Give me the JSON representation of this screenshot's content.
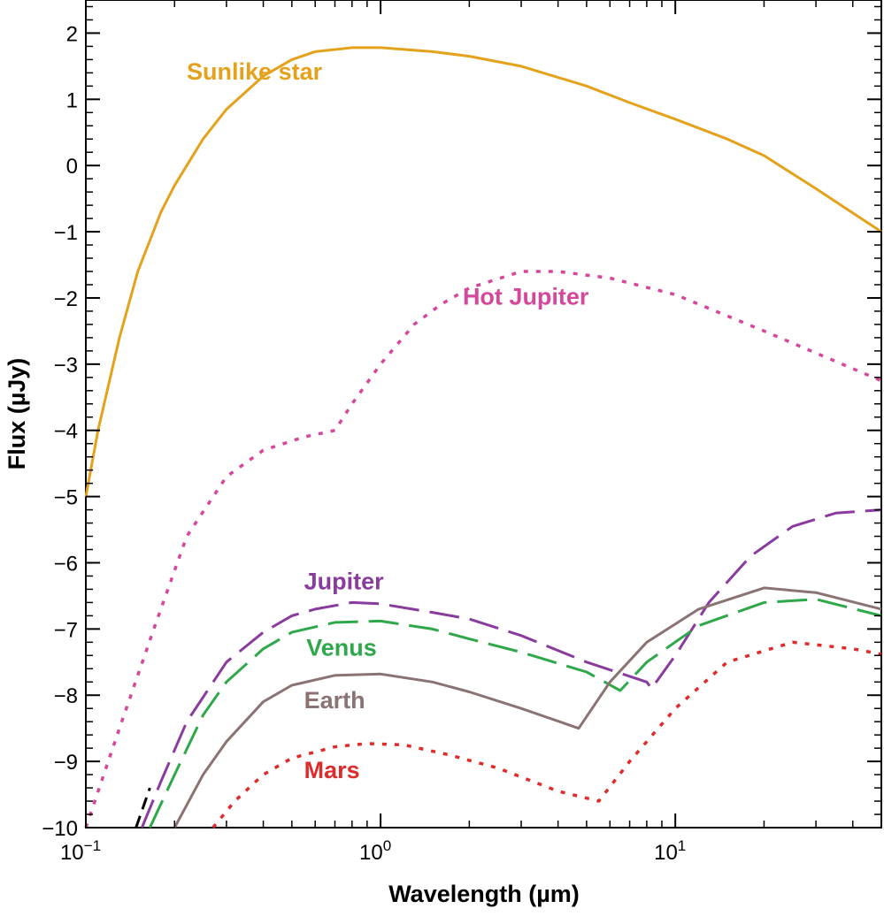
{
  "chart_data": {
    "type": "line",
    "xscale": "log",
    "xlabel": "Wavelength (µm)",
    "ylabel": "Flux (µJy)",
    "xlim": [
      0.1,
      50
    ],
    "ylim": [
      -10,
      2.5
    ],
    "x_ticks": [
      {
        "value": 0.1,
        "base": "10",
        "exp": "−1"
      },
      {
        "value": 1,
        "base": "10",
        "exp": "0"
      },
      {
        "value": 10,
        "base": "10",
        "exp": "1"
      }
    ],
    "y_ticks": [
      {
        "value": 2,
        "label": "2"
      },
      {
        "value": 1,
        "label": "1"
      },
      {
        "value": 0,
        "label": "0"
      },
      {
        "value": -1,
        "label": "−1"
      },
      {
        "value": -2,
        "label": "−2"
      },
      {
        "value": -3,
        "label": "−3"
      },
      {
        "value": -4,
        "label": "−4"
      },
      {
        "value": -5,
        "label": "−5"
      },
      {
        "value": -6,
        "label": "−6"
      },
      {
        "value": -7,
        "label": "−7"
      },
      {
        "value": -8,
        "label": "−8"
      },
      {
        "value": -9,
        "label": "−9"
      },
      {
        "value": -10,
        "label": "−10"
      }
    ],
    "grid": false,
    "series": [
      {
        "name": "Sunlike star",
        "color": "#e4a21c",
        "style": "solid",
        "label_at": [
          0.22,
          1.3
        ],
        "points": [
          [
            0.1,
            -5.0
          ],
          [
            0.11,
            -4.0
          ],
          [
            0.13,
            -2.6
          ],
          [
            0.15,
            -1.6
          ],
          [
            0.18,
            -0.7
          ],
          [
            0.2,
            -0.3
          ],
          [
            0.25,
            0.4
          ],
          [
            0.3,
            0.85
          ],
          [
            0.4,
            1.35
          ],
          [
            0.5,
            1.6
          ],
          [
            0.6,
            1.72
          ],
          [
            0.8,
            1.78
          ],
          [
            1.0,
            1.78
          ],
          [
            1.5,
            1.72
          ],
          [
            2.0,
            1.65
          ],
          [
            3.0,
            1.5
          ],
          [
            5.0,
            1.2
          ],
          [
            7.0,
            0.95
          ],
          [
            10.0,
            0.7
          ],
          [
            15.0,
            0.4
          ],
          [
            20.0,
            0.15
          ],
          [
            30.0,
            -0.35
          ],
          [
            50.0,
            -1.0
          ]
        ]
      },
      {
        "name": "Hot Jupiter",
        "color": "#d6479b",
        "style": "dot",
        "label_at": [
          1.9,
          -2.1
        ],
        "points": [
          [
            0.1,
            -10.0
          ],
          [
            0.13,
            -8.5
          ],
          [
            0.17,
            -7.0
          ],
          [
            0.22,
            -5.6
          ],
          [
            0.3,
            -4.7
          ],
          [
            0.4,
            -4.3
          ],
          [
            0.55,
            -4.1
          ],
          [
            0.7,
            -4.0
          ],
          [
            0.8,
            -3.6
          ],
          [
            1.0,
            -3.0
          ],
          [
            1.3,
            -2.4
          ],
          [
            1.6,
            -2.1
          ],
          [
            2.0,
            -1.85
          ],
          [
            3.0,
            -1.6
          ],
          [
            4.0,
            -1.6
          ],
          [
            6.0,
            -1.7
          ],
          [
            10.0,
            -1.95
          ],
          [
            20.0,
            -2.5
          ],
          [
            50.0,
            -3.25
          ]
        ]
      },
      {
        "name": "Jupiter",
        "color": "#8a3b9e",
        "style": "dash",
        "label_at": [
          0.55,
          -6.4
        ],
        "points": [
          [
            0.155,
            -10.0
          ],
          [
            0.18,
            -9.3
          ],
          [
            0.22,
            -8.4
          ],
          [
            0.3,
            -7.5
          ],
          [
            0.4,
            -7.05
          ],
          [
            0.5,
            -6.8
          ],
          [
            0.6,
            -6.7
          ],
          [
            0.8,
            -6.6
          ],
          [
            1.0,
            -6.62
          ],
          [
            1.5,
            -6.75
          ],
          [
            2.0,
            -6.85
          ],
          [
            3.0,
            -7.1
          ],
          [
            5.0,
            -7.5
          ],
          [
            8.0,
            -7.8
          ],
          [
            8.3,
            -7.9
          ],
          [
            10.0,
            -7.4
          ],
          [
            13.0,
            -6.6
          ],
          [
            18.0,
            -5.9
          ],
          [
            25.0,
            -5.45
          ],
          [
            35.0,
            -5.25
          ],
          [
            50.0,
            -5.2
          ]
        ]
      },
      {
        "name": "Venus",
        "color": "#2ea84a",
        "style": "dash",
        "label_at": [
          0.56,
          -7.4
        ],
        "points": [
          [
            0.165,
            -10.0
          ],
          [
            0.2,
            -9.2
          ],
          [
            0.25,
            -8.3
          ],
          [
            0.3,
            -7.8
          ],
          [
            0.4,
            -7.3
          ],
          [
            0.5,
            -7.05
          ],
          [
            0.7,
            -6.9
          ],
          [
            1.0,
            -6.88
          ],
          [
            1.5,
            -7.0
          ],
          [
            2.0,
            -7.15
          ],
          [
            3.0,
            -7.35
          ],
          [
            5.0,
            -7.65
          ],
          [
            6.5,
            -7.93
          ],
          [
            8.0,
            -7.5
          ],
          [
            12.0,
            -6.95
          ],
          [
            20.0,
            -6.6
          ],
          [
            30.0,
            -6.55
          ],
          [
            50.0,
            -6.8
          ]
        ]
      },
      {
        "name": "Earth",
        "color": "#8b7374",
        "style": "solid",
        "label_at": [
          0.55,
          -8.2
        ],
        "points": [
          [
            0.2,
            -10.0
          ],
          [
            0.25,
            -9.2
          ],
          [
            0.3,
            -8.7
          ],
          [
            0.4,
            -8.1
          ],
          [
            0.5,
            -7.85
          ],
          [
            0.7,
            -7.7
          ],
          [
            1.0,
            -7.68
          ],
          [
            1.5,
            -7.8
          ],
          [
            2.0,
            -7.95
          ],
          [
            3.0,
            -8.2
          ],
          [
            4.7,
            -8.5
          ],
          [
            6.0,
            -7.8
          ],
          [
            8.0,
            -7.2
          ],
          [
            12.0,
            -6.7
          ],
          [
            20.0,
            -6.38
          ],
          [
            30.0,
            -6.45
          ],
          [
            50.0,
            -6.7
          ]
        ]
      },
      {
        "name": "Mars",
        "color": "#e02b2b",
        "style": "dot",
        "label_at": [
          0.55,
          -9.25
        ],
        "points": [
          [
            0.27,
            -10.0
          ],
          [
            0.32,
            -9.6
          ],
          [
            0.4,
            -9.2
          ],
          [
            0.5,
            -8.95
          ],
          [
            0.7,
            -8.78
          ],
          [
            0.9,
            -8.73
          ],
          [
            1.2,
            -8.75
          ],
          [
            1.7,
            -8.9
          ],
          [
            2.5,
            -9.1
          ],
          [
            4.0,
            -9.45
          ],
          [
            5.5,
            -9.6
          ],
          [
            7.0,
            -9.0
          ],
          [
            10.0,
            -8.2
          ],
          [
            15.0,
            -7.5
          ],
          [
            25.0,
            -7.2
          ],
          [
            40.0,
            -7.3
          ],
          [
            50.0,
            -7.38
          ]
        ]
      },
      {
        "name": "",
        "color": "#000000",
        "style": "dash-short",
        "points": [
          [
            0.148,
            -10.0
          ],
          [
            0.165,
            -9.4
          ]
        ]
      }
    ]
  }
}
